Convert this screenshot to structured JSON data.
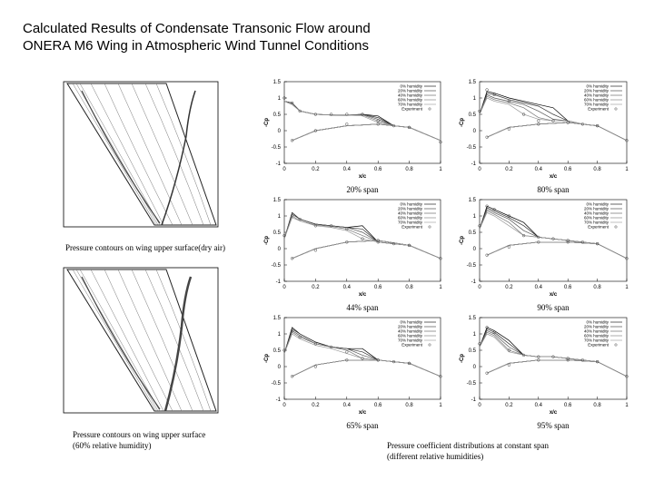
{
  "title": [
    "Calculated Results of Condensate Transonic Flow around",
    "ONERA M6 Wing in Atmospheric Wind Tunnel Conditions"
  ],
  "image_captions": [
    [
      "Pressure contours on wing upper surface(dry air)"
    ],
    [
      "Pressure contours on wing upper surface",
      "(60% relative humidity)"
    ]
  ],
  "charts_caption": [
    "Pressure coefficient distributions at constant span",
    "(different relative humidities)"
  ],
  "chart_data": [
    {
      "type": "line",
      "caption": "20% span",
      "x_label": "x/c",
      "y_label": "-Cp",
      "xlim": [
        0,
        1
      ],
      "ylim": [
        -1,
        1.5
      ],
      "xticks": [
        0,
        0.2,
        0.4,
        0.6,
        0.8,
        1
      ],
      "yticks": [
        -1,
        -0.5,
        0,
        0.5,
        1,
        1.5
      ],
      "legend": "top-right",
      "x": [
        0,
        0.05,
        0.1,
        0.2,
        0.3,
        0.4,
        0.5,
        0.6,
        0.7,
        0.8,
        1,
        0.8,
        0.6,
        0.4,
        0.2,
        0.05
      ],
      "series": [
        {
          "name": "0% humidity",
          "color": "#000000",
          "values": [
            0.9,
            0.85,
            0.6,
            0.5,
            0.48,
            0.47,
            0.5,
            0.45,
            0.15,
            0.1,
            -0.3,
            0.1,
            0.2,
            0.15,
            0.0,
            -0.3
          ]
        },
        {
          "name": "20% humidity",
          "color": "#333333",
          "values": [
            0.9,
            0.85,
            0.6,
            0.5,
            0.48,
            0.47,
            0.5,
            0.4,
            0.15,
            0.1,
            -0.3,
            0.1,
            0.2,
            0.15,
            0.0,
            -0.3
          ]
        },
        {
          "name": "40% humidity",
          "color": "#555555",
          "values": [
            0.9,
            0.85,
            0.6,
            0.5,
            0.48,
            0.48,
            0.5,
            0.35,
            0.15,
            0.1,
            -0.3,
            0.1,
            0.2,
            0.15,
            0.0,
            -0.3
          ]
        },
        {
          "name": "60% humidity",
          "color": "#777777",
          "values": [
            0.9,
            0.8,
            0.6,
            0.5,
            0.48,
            0.48,
            0.48,
            0.3,
            0.15,
            0.1,
            -0.3,
            0.1,
            0.2,
            0.15,
            0.0,
            -0.3
          ]
        },
        {
          "name": "70% humidity",
          "color": "#999999",
          "values": [
            0.9,
            0.8,
            0.6,
            0.5,
            0.48,
            0.48,
            0.45,
            0.25,
            0.15,
            0.1,
            -0.3,
            0.1,
            0.2,
            0.15,
            0.0,
            -0.3
          ]
        },
        {
          "name": "Experiment",
          "color": "#444444",
          "mode": "markers",
          "values": [
            1.0,
            0.85,
            0.6,
            0.5,
            0.5,
            0.5,
            0.5,
            0.3,
            0.15,
            0.1,
            -0.35,
            0.1,
            0.2,
            0.2,
            0.0,
            -0.3
          ]
        }
      ]
    },
    {
      "type": "line",
      "caption": "44% span",
      "x_label": "x/c",
      "y_label": "-Cp",
      "xlim": [
        0,
        1
      ],
      "ylim": [
        -1,
        1.5
      ],
      "xticks": [
        0,
        0.2,
        0.4,
        0.6,
        0.8,
        1
      ],
      "yticks": [
        -1,
        -0.5,
        0,
        0.5,
        1,
        1.5
      ],
      "legend": "top-right",
      "x": [
        0,
        0.05,
        0.1,
        0.2,
        0.3,
        0.4,
        0.5,
        0.6,
        0.7,
        0.8,
        1,
        0.8,
        0.6,
        0.4,
        0.2,
        0.05
      ],
      "series": [
        {
          "name": "0% humidity",
          "color": "#000000",
          "values": [
            0.3,
            1.1,
            0.9,
            0.75,
            0.7,
            0.65,
            0.7,
            0.2,
            0.15,
            0.1,
            -0.3,
            0.1,
            0.25,
            0.2,
            0.0,
            -0.3
          ]
        },
        {
          "name": "20% humidity",
          "color": "#333333",
          "values": [
            0.3,
            1.1,
            0.9,
            0.75,
            0.7,
            0.65,
            0.6,
            0.2,
            0.15,
            0.1,
            -0.3,
            0.1,
            0.25,
            0.2,
            0.0,
            -0.3
          ]
        },
        {
          "name": "40% humidity",
          "color": "#555555",
          "values": [
            0.3,
            1.05,
            0.9,
            0.75,
            0.7,
            0.65,
            0.5,
            0.2,
            0.15,
            0.1,
            -0.3,
            0.1,
            0.25,
            0.2,
            0.0,
            -0.3
          ]
        },
        {
          "name": "60% humidity",
          "color": "#777777",
          "values": [
            0.3,
            1.0,
            0.85,
            0.72,
            0.68,
            0.6,
            0.4,
            0.2,
            0.15,
            0.1,
            -0.3,
            0.1,
            0.25,
            0.2,
            0.0,
            -0.3
          ]
        },
        {
          "name": "70% humidity",
          "color": "#999999",
          "values": [
            0.3,
            0.95,
            0.85,
            0.7,
            0.65,
            0.55,
            0.3,
            0.2,
            0.15,
            0.1,
            -0.3,
            0.1,
            0.25,
            0.2,
            0.0,
            -0.3
          ]
        },
        {
          "name": "Experiment",
          "color": "#444444",
          "mode": "markers",
          "values": [
            0.4,
            1.0,
            0.9,
            0.7,
            0.7,
            0.6,
            0.3,
            0.2,
            0.15,
            0.1,
            -0.3,
            0.1,
            0.25,
            0.2,
            -0.05,
            -0.3
          ]
        }
      ]
    },
    {
      "type": "line",
      "caption": "65% span",
      "x_label": "x/c",
      "y_label": "-Cp",
      "xlim": [
        0,
        1
      ],
      "ylim": [
        -1,
        1.5
      ],
      "xticks": [
        0,
        0.2,
        0.4,
        0.6,
        0.8,
        1
      ],
      "yticks": [
        -1,
        -0.5,
        0,
        0.5,
        1,
        1.5
      ],
      "legend": "top-right",
      "x": [
        0,
        0.05,
        0.1,
        0.2,
        0.3,
        0.4,
        0.5,
        0.6,
        0.7,
        0.8,
        1,
        0.8,
        0.6,
        0.4,
        0.2,
        0.05
      ],
      "series": [
        {
          "name": "0% humidity",
          "color": "#000000",
          "values": [
            0.4,
            1.2,
            1.0,
            0.75,
            0.6,
            0.55,
            0.55,
            0.2,
            0.15,
            0.1,
            -0.3,
            0.1,
            0.2,
            0.2,
            0.05,
            -0.3
          ]
        },
        {
          "name": "20% humidity",
          "color": "#333333",
          "values": [
            0.4,
            1.15,
            1.0,
            0.75,
            0.6,
            0.55,
            0.45,
            0.2,
            0.15,
            0.1,
            -0.3,
            0.1,
            0.2,
            0.2,
            0.05,
            -0.3
          ]
        },
        {
          "name": "40% humidity",
          "color": "#555555",
          "values": [
            0.4,
            1.1,
            0.95,
            0.7,
            0.6,
            0.55,
            0.35,
            0.2,
            0.15,
            0.1,
            -0.3,
            0.1,
            0.2,
            0.2,
            0.05,
            -0.3
          ]
        },
        {
          "name": "60% humidity",
          "color": "#777777",
          "values": [
            0.4,
            1.05,
            0.9,
            0.7,
            0.6,
            0.5,
            0.25,
            0.2,
            0.15,
            0.1,
            -0.3,
            0.1,
            0.2,
            0.2,
            0.05,
            -0.3
          ]
        },
        {
          "name": "70% humidity",
          "color": "#999999",
          "values": [
            0.4,
            1.0,
            0.85,
            0.65,
            0.55,
            0.4,
            0.25,
            0.2,
            0.15,
            0.1,
            -0.3,
            0.1,
            0.2,
            0.2,
            0.05,
            -0.3
          ]
        },
        {
          "name": "Experiment",
          "color": "#444444",
          "mode": "markers",
          "values": [
            0.5,
            1.1,
            0.9,
            0.7,
            0.6,
            0.45,
            0.25,
            0.2,
            0.15,
            0.1,
            -0.3,
            0.1,
            0.2,
            0.2,
            0.0,
            -0.3
          ]
        }
      ]
    },
    {
      "type": "line",
      "caption": "80% span",
      "x_label": "x/c",
      "y_label": "-Cp",
      "xlim": [
        0,
        1
      ],
      "ylim": [
        -1,
        1.5
      ],
      "xticks": [
        0,
        0.2,
        0.4,
        0.6,
        0.8,
        1
      ],
      "yticks": [
        -1,
        -0.5,
        0,
        0.5,
        1,
        1.5
      ],
      "legend": "top-right",
      "x": [
        0,
        0.05,
        0.1,
        0.2,
        0.3,
        0.4,
        0.5,
        0.6,
        0.7,
        0.8,
        1,
        0.8,
        0.6,
        0.4,
        0.2,
        0.05
      ],
      "series": [
        {
          "name": "0% humidity",
          "color": "#000000",
          "values": [
            0.5,
            1.2,
            1.15,
            1.0,
            0.9,
            0.8,
            0.7,
            0.3,
            0.2,
            0.15,
            -0.3,
            0.15,
            0.25,
            0.2,
            0.1,
            -0.2
          ]
        },
        {
          "name": "20% humidity",
          "color": "#333333",
          "values": [
            0.5,
            1.15,
            1.1,
            0.95,
            0.85,
            0.75,
            0.5,
            0.3,
            0.2,
            0.15,
            -0.3,
            0.15,
            0.25,
            0.2,
            0.1,
            -0.2
          ]
        },
        {
          "name": "40% humidity",
          "color": "#555555",
          "values": [
            0.5,
            1.1,
            1.0,
            0.9,
            0.8,
            0.6,
            0.35,
            0.3,
            0.2,
            0.15,
            -0.3,
            0.15,
            0.25,
            0.2,
            0.1,
            -0.2
          ]
        },
        {
          "name": "60% humidity",
          "color": "#777777",
          "values": [
            0.5,
            1.05,
            0.95,
            0.85,
            0.7,
            0.4,
            0.3,
            0.3,
            0.2,
            0.15,
            -0.3,
            0.15,
            0.25,
            0.2,
            0.1,
            -0.2
          ]
        },
        {
          "name": "70% humidity",
          "color": "#999999",
          "values": [
            0.5,
            1.0,
            0.9,
            0.8,
            0.5,
            0.35,
            0.3,
            0.3,
            0.2,
            0.15,
            -0.3,
            0.15,
            0.25,
            0.2,
            0.1,
            -0.2
          ]
        },
        {
          "name": "Experiment",
          "color": "#444444",
          "mode": "markers",
          "values": [
            0.6,
            1.25,
            1.1,
            0.9,
            0.5,
            0.3,
            0.3,
            0.25,
            0.2,
            0.15,
            -0.3,
            0.15,
            0.25,
            0.2,
            0.05,
            -0.2
          ]
        }
      ]
    },
    {
      "type": "line",
      "caption": "90% span",
      "x_label": "x/c",
      "y_label": "-Cp",
      "xlim": [
        0,
        1
      ],
      "ylim": [
        -1,
        1.5
      ],
      "xticks": [
        0,
        0.2,
        0.4,
        0.6,
        0.8,
        1
      ],
      "yticks": [
        -1,
        -0.5,
        0,
        0.5,
        1,
        1.5
      ],
      "legend": "top-right",
      "x": [
        0,
        0.05,
        0.1,
        0.2,
        0.3,
        0.4,
        0.5,
        0.6,
        0.7,
        0.8,
        1,
        0.8,
        0.6,
        0.4,
        0.2,
        0.05
      ],
      "series": [
        {
          "name": "0% humidity",
          "color": "#000000",
          "values": [
            0.6,
            1.3,
            1.2,
            1.0,
            0.8,
            0.35,
            0.3,
            0.25,
            0.2,
            0.15,
            -0.3,
            0.15,
            0.2,
            0.2,
            0.1,
            -0.2
          ]
        },
        {
          "name": "20% humidity",
          "color": "#333333",
          "values": [
            0.6,
            1.25,
            1.15,
            0.95,
            0.7,
            0.35,
            0.3,
            0.25,
            0.2,
            0.15,
            -0.3,
            0.15,
            0.2,
            0.2,
            0.1,
            -0.2
          ]
        },
        {
          "name": "40% humidity",
          "color": "#555555",
          "values": [
            0.6,
            1.2,
            1.1,
            0.9,
            0.55,
            0.35,
            0.3,
            0.25,
            0.2,
            0.15,
            -0.3,
            0.15,
            0.2,
            0.2,
            0.1,
            -0.2
          ]
        },
        {
          "name": "60% humidity",
          "color": "#777777",
          "values": [
            0.6,
            1.15,
            1.05,
            0.8,
            0.4,
            0.35,
            0.3,
            0.25,
            0.2,
            0.15,
            -0.3,
            0.15,
            0.2,
            0.2,
            0.1,
            -0.2
          ]
        },
        {
          "name": "70% humidity",
          "color": "#999999",
          "values": [
            0.6,
            1.1,
            1.0,
            0.7,
            0.4,
            0.35,
            0.3,
            0.25,
            0.2,
            0.15,
            -0.3,
            0.15,
            0.2,
            0.2,
            0.1,
            -0.2
          ]
        },
        {
          "name": "Experiment",
          "color": "#444444",
          "mode": "markers",
          "values": [
            0.7,
            1.3,
            1.2,
            1.0,
            0.4,
            0.35,
            0.3,
            0.25,
            0.2,
            0.15,
            -0.3,
            0.15,
            0.2,
            0.2,
            0.05,
            -0.2
          ]
        }
      ]
    },
    {
      "type": "line",
      "caption": "95% span",
      "x_label": "x/c",
      "y_label": "-Cp",
      "xlim": [
        0,
        1
      ],
      "ylim": [
        -1,
        1.5
      ],
      "xticks": [
        0,
        0.2,
        0.4,
        0.6,
        0.8,
        1
      ],
      "yticks": [
        -1,
        -0.5,
        0,
        0.5,
        1,
        1.5
      ],
      "legend": "top-right",
      "x": [
        0,
        0.05,
        0.1,
        0.2,
        0.3,
        0.4,
        0.5,
        0.6,
        0.7,
        0.8,
        1,
        0.8,
        0.6,
        0.4,
        0.2,
        0.05
      ],
      "series": [
        {
          "name": "0% humidity",
          "color": "#000000",
          "values": [
            0.6,
            1.2,
            1.1,
            0.8,
            0.35,
            0.3,
            0.3,
            0.25,
            0.2,
            0.15,
            -0.3,
            0.15,
            0.2,
            0.2,
            0.1,
            -0.2
          ]
        },
        {
          "name": "20% humidity",
          "color": "#333333",
          "values": [
            0.6,
            1.15,
            1.05,
            0.7,
            0.35,
            0.3,
            0.3,
            0.25,
            0.2,
            0.15,
            -0.3,
            0.15,
            0.2,
            0.2,
            0.1,
            -0.2
          ]
        },
        {
          "name": "40% humidity",
          "color": "#555555",
          "values": [
            0.6,
            1.1,
            1.0,
            0.6,
            0.35,
            0.3,
            0.3,
            0.25,
            0.2,
            0.15,
            -0.3,
            0.15,
            0.2,
            0.2,
            0.1,
            -0.2
          ]
        },
        {
          "name": "60% humidity",
          "color": "#777777",
          "values": [
            0.6,
            1.05,
            0.95,
            0.5,
            0.35,
            0.3,
            0.3,
            0.25,
            0.2,
            0.15,
            -0.3,
            0.15,
            0.2,
            0.2,
            0.1,
            -0.2
          ]
        },
        {
          "name": "70% humidity",
          "color": "#999999",
          "values": [
            0.6,
            1.0,
            0.9,
            0.45,
            0.35,
            0.3,
            0.3,
            0.25,
            0.2,
            0.15,
            -0.3,
            0.15,
            0.2,
            0.2,
            0.1,
            -0.2
          ]
        },
        {
          "name": "Experiment",
          "color": "#444444",
          "mode": "markers",
          "values": [
            0.7,
            1.2,
            1.05,
            0.5,
            0.35,
            0.3,
            0.3,
            0.25,
            0.2,
            0.15,
            -0.3,
            0.15,
            0.2,
            0.2,
            0.05,
            -0.2
          ]
        }
      ]
    }
  ]
}
